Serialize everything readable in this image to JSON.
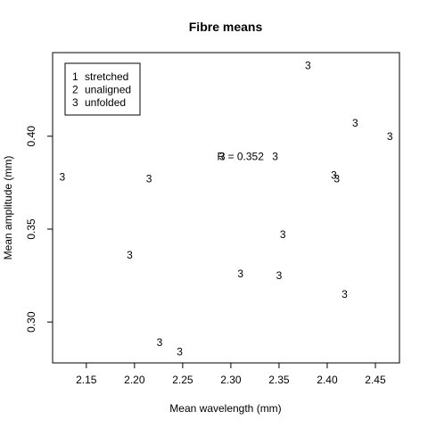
{
  "chart_data": {
    "type": "scatter",
    "title": "Fibre means",
    "xlabel": "Mean wavelength (mm)",
    "ylabel": "Mean amplitude (mm)",
    "xlim": [
      2.115,
      2.475
    ],
    "ylim": [
      0.278,
      0.445
    ],
    "xticks": [
      {
        "value": 2.15,
        "label": "2.15"
      },
      {
        "value": 2.2,
        "label": "2.20"
      },
      {
        "value": 2.25,
        "label": "2.25"
      },
      {
        "value": 2.3,
        "label": "2.30"
      },
      {
        "value": 2.35,
        "label": "2.35"
      },
      {
        "value": 2.4,
        "label": "2.40"
      },
      {
        "value": 2.45,
        "label": "2.45"
      }
    ],
    "yticks": [
      {
        "value": 0.3,
        "label": "0.30"
      },
      {
        "value": 0.35,
        "label": "0.35"
      },
      {
        "value": 0.4,
        "label": "0.40"
      }
    ],
    "grid": false,
    "legend": {
      "placement": "top-left",
      "entries": [
        {
          "symbol": "1",
          "label": "stretched"
        },
        {
          "symbol": "2",
          "label": "unaligned"
        },
        {
          "symbol": "3",
          "label": "unfolded"
        }
      ]
    },
    "points": [
      {
        "x": 2.125,
        "y": 0.378,
        "label": "3"
      },
      {
        "x": 2.195,
        "y": 0.336,
        "label": "3"
      },
      {
        "x": 2.215,
        "y": 0.377,
        "label": "3"
      },
      {
        "x": 2.226,
        "y": 0.289,
        "label": "3"
      },
      {
        "x": 2.247,
        "y": 0.284,
        "label": "3"
      },
      {
        "x": 2.291,
        "y": 0.389,
        "label": "3"
      },
      {
        "x": 2.31,
        "y": 0.326,
        "label": "3"
      },
      {
        "x": 2.346,
        "y": 0.389,
        "label": "3"
      },
      {
        "x": 2.35,
        "y": 0.325,
        "label": "3"
      },
      {
        "x": 2.354,
        "y": 0.347,
        "label": "3"
      },
      {
        "x": 2.38,
        "y": 0.438,
        "label": "3"
      },
      {
        "x": 2.407,
        "y": 0.379,
        "label": "3"
      },
      {
        "x": 2.41,
        "y": 0.377,
        "label": "3"
      },
      {
        "x": 2.418,
        "y": 0.315,
        "label": "3"
      },
      {
        "x": 2.429,
        "y": 0.407,
        "label": "3"
      },
      {
        "x": 2.465,
        "y": 0.4,
        "label": "3"
      }
    ],
    "annotation": {
      "text": "R = 0.352",
      "x": 2.31,
      "y": 0.389
    }
  }
}
